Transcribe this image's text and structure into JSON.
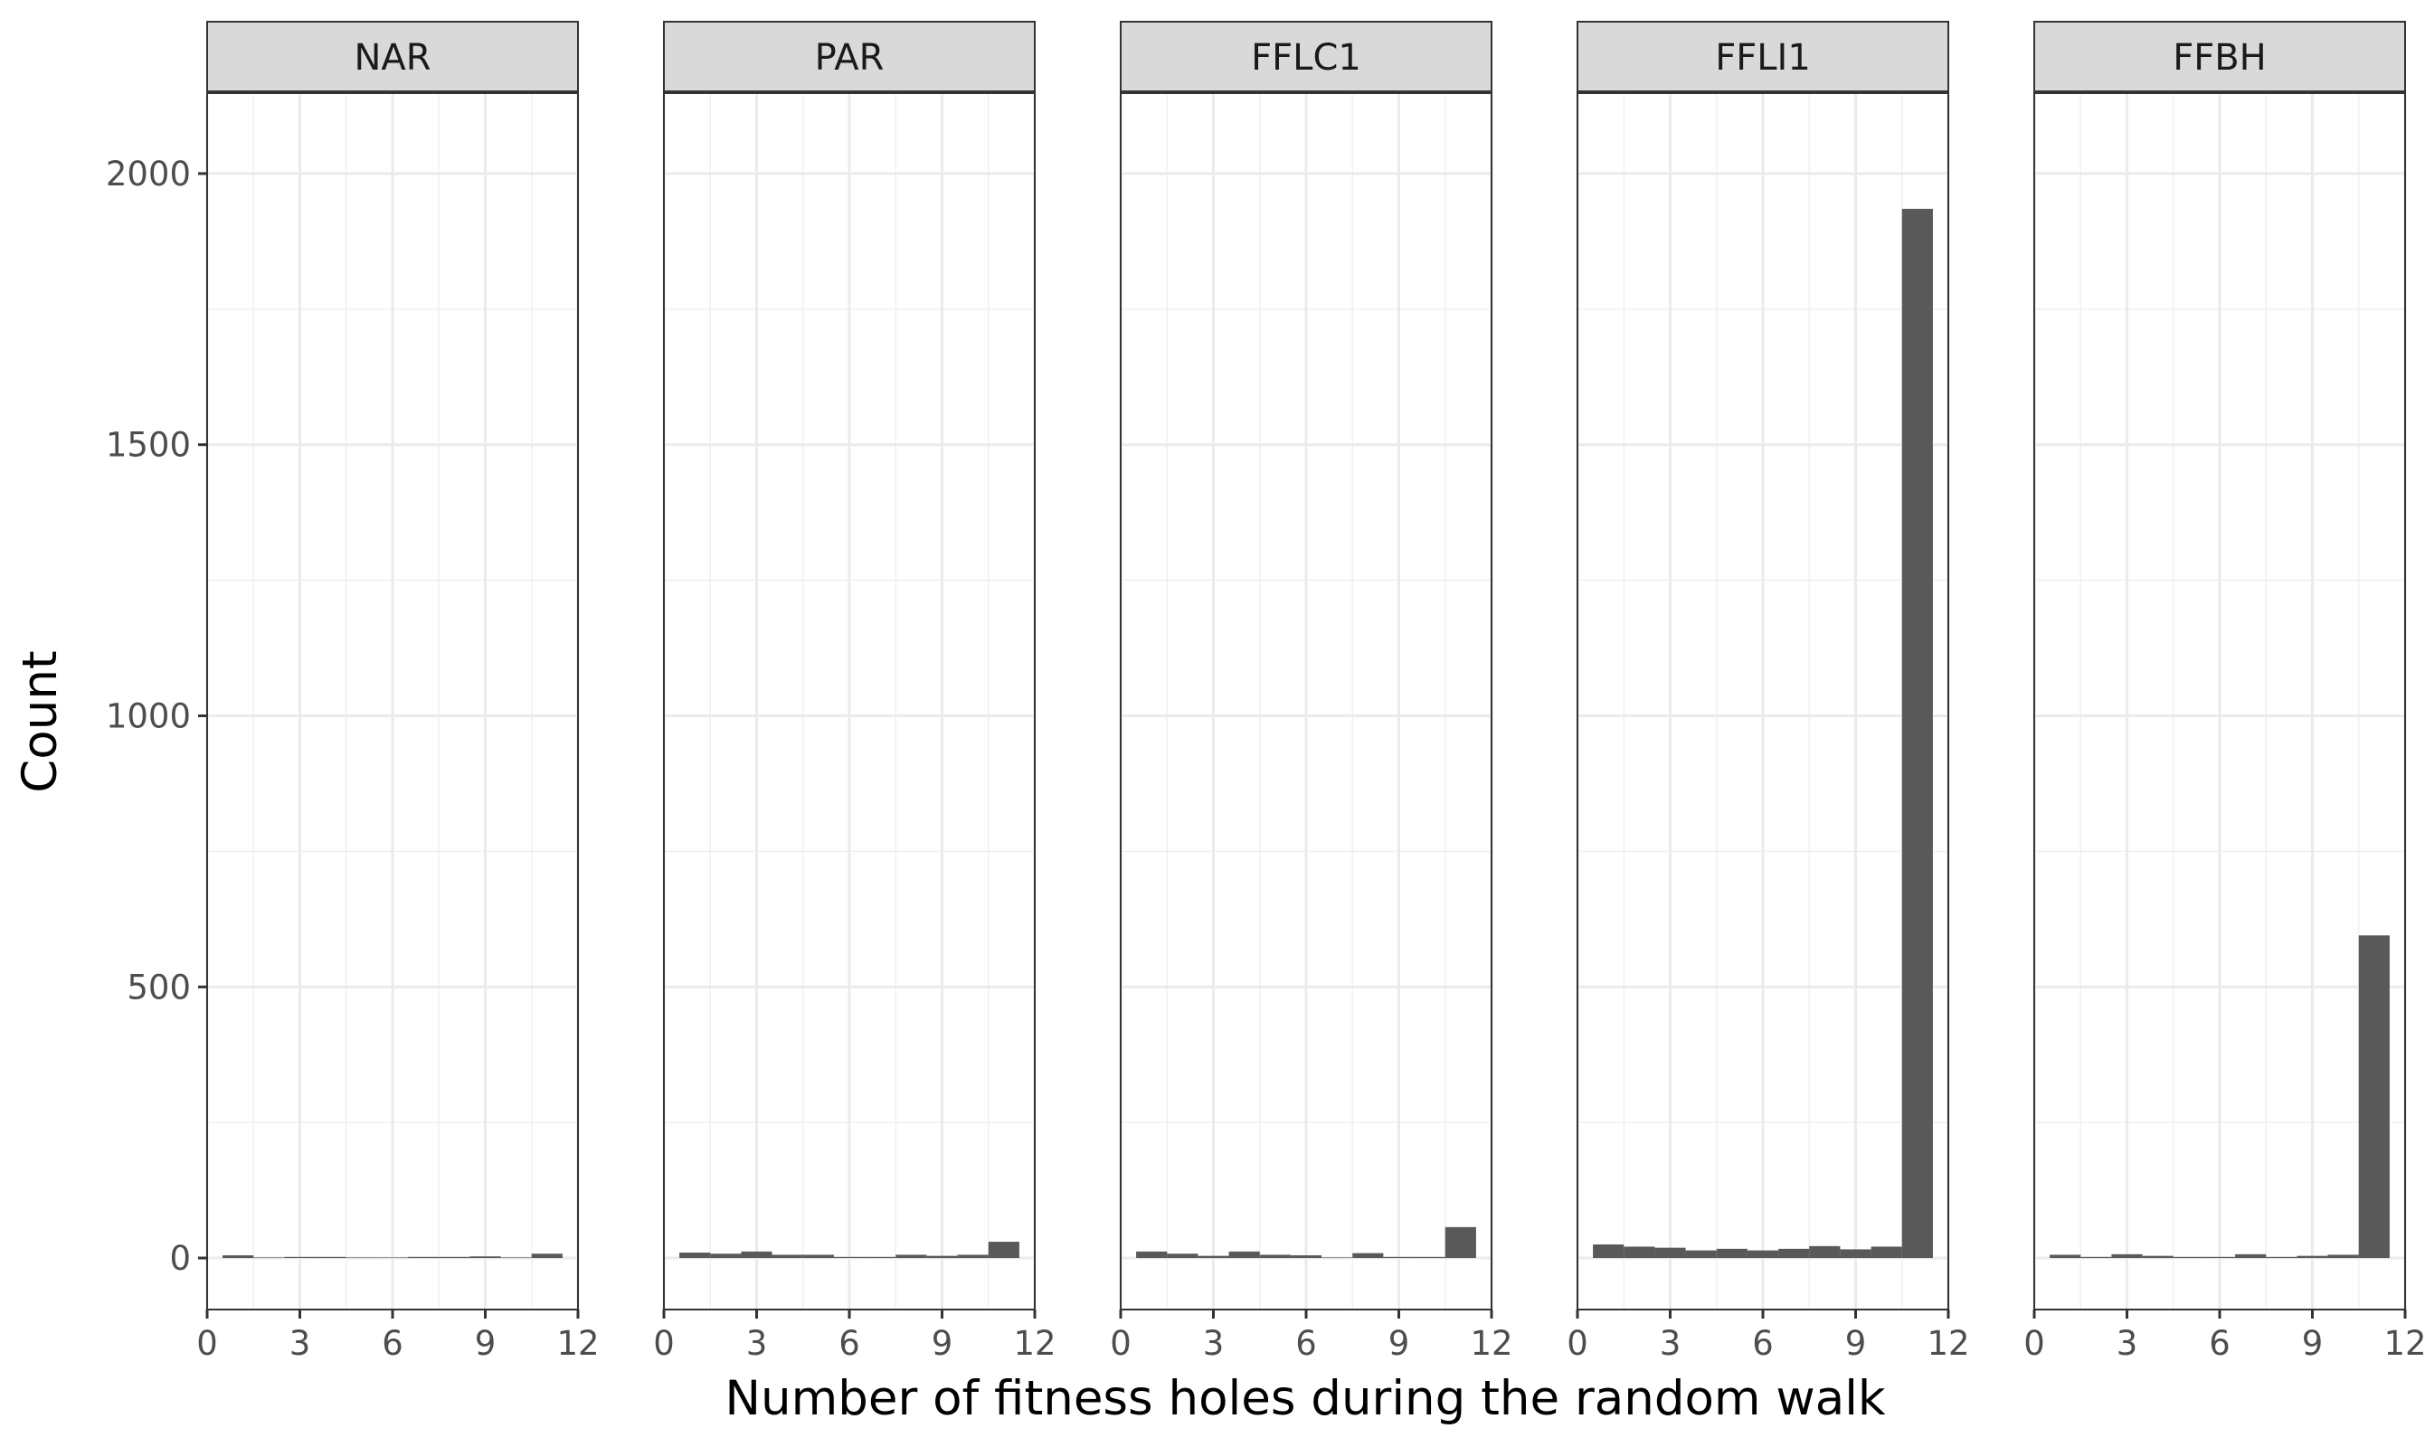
{
  "chart_data": {
    "type": "bar",
    "chart_kind": "faceted histogram",
    "xlabel": "Number of fitness holes during the random walk",
    "ylabel": "Count",
    "xlim": [
      0,
      12
    ],
    "ylim": [
      -95,
      2150
    ],
    "x_ticks": [
      "0",
      "3",
      "6",
      "9",
      "12"
    ],
    "y_ticks": [
      "0",
      "500",
      "1000",
      "1500",
      "2000"
    ],
    "bin_centers": [
      1,
      2,
      3,
      4,
      5,
      6,
      7,
      8,
      9,
      10,
      11
    ],
    "bin_width": 1,
    "grid": true,
    "bar_color": "#595959",
    "panels": [
      {
        "name": "NAR",
        "values": [
          5,
          1,
          2,
          2,
          1,
          1,
          2,
          2,
          3,
          1,
          8
        ]
      },
      {
        "name": "PAR",
        "values": [
          10,
          8,
          12,
          6,
          6,
          2,
          2,
          6,
          4,
          6,
          30
        ]
      },
      {
        "name": "FFLC1",
        "values": [
          12,
          8,
          4,
          12,
          6,
          5,
          1,
          9,
          2,
          2,
          57
        ]
      },
      {
        "name": "FFLI1",
        "values": [
          25,
          21,
          19,
          14,
          17,
          14,
          17,
          22,
          16,
          21,
          1935
        ]
      },
      {
        "name": "FFBH",
        "values": [
          6,
          2,
          7,
          4,
          2,
          2,
          7,
          2,
          4,
          6,
          595
        ]
      }
    ]
  }
}
